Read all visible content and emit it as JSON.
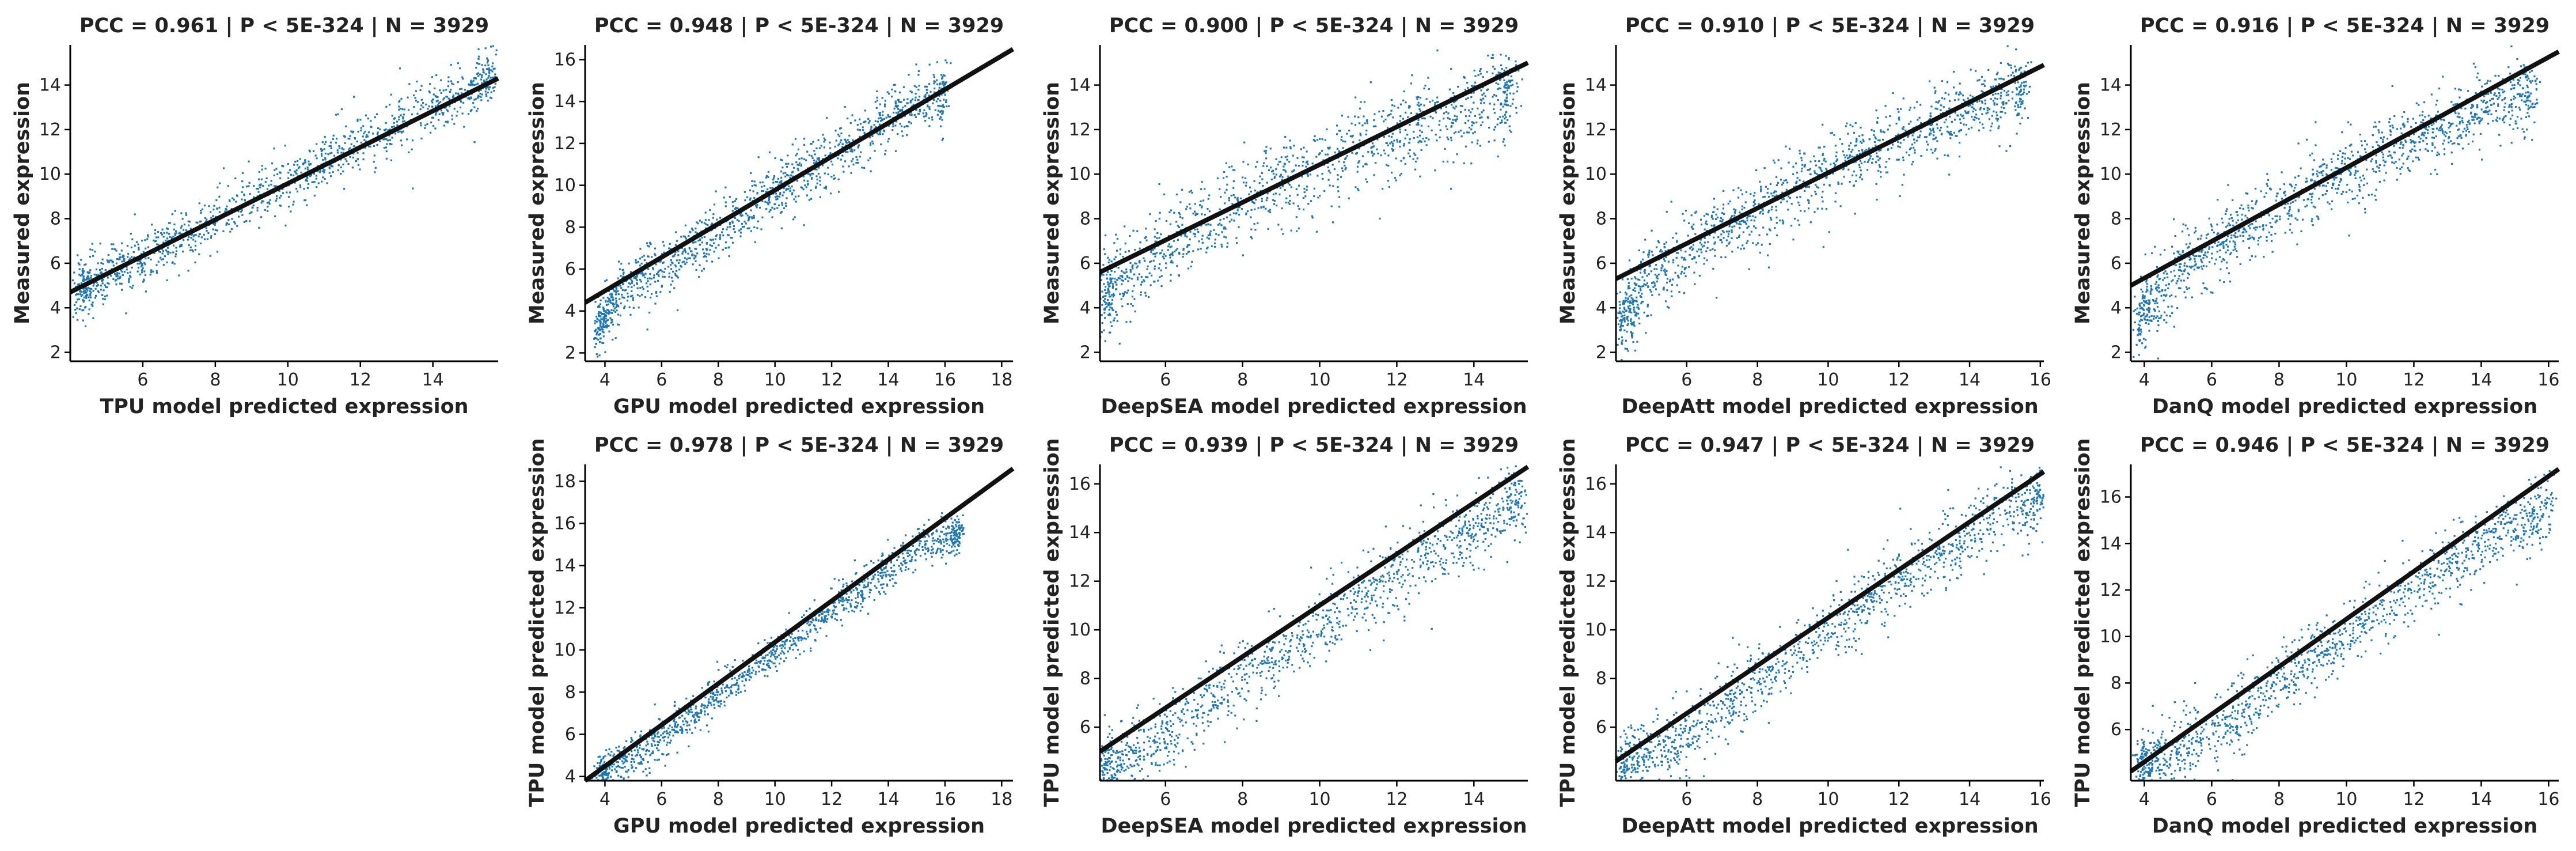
{
  "colors": {
    "points": "#1f77b4",
    "fit_line": "#111111",
    "axis": "#000000",
    "text": "#222222"
  },
  "chart_data": [
    {
      "type": "scatter",
      "title": "PCC =  0.961 | P <  5E-324 | N = 3929",
      "xlabel": "TPU model predicted expression",
      "ylabel": "Measured expression",
      "xlim": [
        4.0,
        15.8
      ],
      "ylim": [
        1.6,
        15.8
      ],
      "xticks": [
        6,
        8,
        10,
        12,
        14
      ],
      "yticks": [
        2,
        4,
        6,
        8,
        10,
        12,
        14
      ],
      "n_points": 3929,
      "pcc": 0.961,
      "fit_line": {
        "x": [
          4.0,
          15.8
        ],
        "y": [
          4.7,
          14.3
        ]
      },
      "cloud": {
        "spine": [
          [
            4.3,
            4.9
          ],
          [
            6,
            6.3
          ],
          [
            8,
            8.0
          ],
          [
            10,
            9.7
          ],
          [
            12,
            11.3
          ],
          [
            14,
            13.0
          ],
          [
            15.6,
            14.3
          ]
        ],
        "spread": 0.75
      },
      "grid": false,
      "legend": "none"
    },
    {
      "type": "scatter",
      "title": "PCC =  0.948 | P <  5E-324 | N = 3929",
      "xlabel": "GPU model predicted expression",
      "ylabel": "Measured expression",
      "xlim": [
        3.3,
        18.4
      ],
      "ylim": [
        1.6,
        16.7
      ],
      "xticks": [
        4,
        6,
        8,
        10,
        12,
        14,
        16,
        18
      ],
      "yticks": [
        2,
        4,
        6,
        8,
        10,
        12,
        14,
        16
      ],
      "n_points": 3929,
      "pcc": 0.948,
      "fit_line": {
        "x": [
          3.3,
          18.4
        ],
        "y": [
          4.4,
          16.5
        ]
      },
      "cloud": {
        "spine": [
          [
            3.8,
            3.2
          ],
          [
            4.5,
            5.0
          ],
          [
            6,
            6.0
          ],
          [
            8,
            7.8
          ],
          [
            10,
            9.7
          ],
          [
            12,
            11.4
          ],
          [
            14,
            13.2
          ],
          [
            16,
            14.5
          ]
        ],
        "spread": 0.8
      },
      "grid": false,
      "legend": "none"
    },
    {
      "type": "scatter",
      "title": "PCC =  0.900 | P <  5E-324 | N = 3929",
      "xlabel": "DeepSEA model predicted expression",
      "ylabel": "Measured expression",
      "xlim": [
        4.3,
        15.4
      ],
      "ylim": [
        1.6,
        15.8
      ],
      "xticks": [
        6,
        8,
        10,
        12,
        14
      ],
      "yticks": [
        2,
        4,
        6,
        8,
        10,
        12,
        14
      ],
      "n_points": 3929,
      "pcc": 0.9,
      "fit_line": {
        "x": [
          4.3,
          15.4
        ],
        "y": [
          5.6,
          15.0
        ]
      },
      "cloud": {
        "spine": [
          [
            4.4,
            4.6
          ],
          [
            5.5,
            6.2
          ],
          [
            7,
            7.8
          ],
          [
            9,
            9.8
          ],
          [
            11,
            11.1
          ],
          [
            13,
            12.4
          ],
          [
            15,
            13.8
          ]
        ],
        "spread": 1.1
      },
      "grid": false,
      "legend": "none"
    },
    {
      "type": "scatter",
      "title": "PCC =  0.910 | P <  5E-324 | N = 3929",
      "xlabel": "DeepAtt model predicted expression",
      "ylabel": "Measured expression",
      "xlim": [
        4.0,
        16.1
      ],
      "ylim": [
        1.6,
        15.8
      ],
      "xticks": [
        6,
        8,
        10,
        12,
        14,
        16
      ],
      "yticks": [
        2,
        4,
        6,
        8,
        10,
        12,
        14
      ],
      "n_points": 3929,
      "pcc": 0.91,
      "fit_line": {
        "x": [
          4.0,
          16.1
        ],
        "y": [
          5.3,
          14.9
        ]
      },
      "cloud": {
        "spine": [
          [
            4.2,
            3.5
          ],
          [
            5,
            5.6
          ],
          [
            7,
            7.5
          ],
          [
            9,
            9.3
          ],
          [
            11,
            10.9
          ],
          [
            13,
            12.2
          ],
          [
            15.5,
            13.9
          ]
        ],
        "spread": 1.0
      },
      "grid": false,
      "legend": "none"
    },
    {
      "type": "scatter",
      "title": "PCC =  0.916 | P <  5E-324 | N = 3929",
      "xlabel": "DanQ model predicted expression",
      "ylabel": "Measured expression",
      "xlim": [
        3.6,
        16.3
      ],
      "ylim": [
        1.6,
        15.8
      ],
      "xticks": [
        4,
        6,
        8,
        10,
        12,
        14,
        16
      ],
      "yticks": [
        2,
        4,
        6,
        8,
        10,
        12,
        14
      ],
      "n_points": 3929,
      "pcc": 0.916,
      "fit_line": {
        "x": [
          3.6,
          16.3
        ],
        "y": [
          5.0,
          15.5
        ]
      },
      "cloud": {
        "spine": [
          [
            3.9,
            3.6
          ],
          [
            5,
            5.8
          ],
          [
            7,
            7.6
          ],
          [
            9,
            9.3
          ],
          [
            11,
            10.9
          ],
          [
            13,
            12.2
          ],
          [
            15.5,
            13.8
          ]
        ],
        "spread": 0.95
      },
      "grid": false,
      "legend": "none"
    },
    {
      "type": "scatter",
      "title": "PCC =  0.978 | P <  5E-324 | N = 3929",
      "xlabel": "GPU model predicted expression",
      "ylabel": "TPU model predicted expression",
      "xlim": [
        3.3,
        18.4
      ],
      "ylim": [
        3.8,
        18.8
      ],
      "xticks": [
        4,
        6,
        8,
        10,
        12,
        14,
        16,
        18
      ],
      "yticks": [
        4,
        6,
        8,
        10,
        12,
        14,
        16,
        18
      ],
      "n_points": 3929,
      "pcc": 0.978,
      "fit_line": {
        "x": [
          3.3,
          18.4
        ],
        "y": [
          3.8,
          18.6
        ]
      },
      "cloud": {
        "spine": [
          [
            3.8,
            4.0
          ],
          [
            5,
            4.9
          ],
          [
            7,
            6.8
          ],
          [
            9,
            8.9
          ],
          [
            11,
            10.9
          ],
          [
            13,
            12.8
          ],
          [
            15,
            14.9
          ],
          [
            16.5,
            15.6
          ]
        ],
        "spread": 0.55
      },
      "grid": false,
      "legend": "none"
    },
    {
      "type": "scatter",
      "title": "PCC =  0.939 | P <  5E-324 | N = 3929",
      "xlabel": "DeepSEA model predicted expression",
      "ylabel": "TPU model predicted expression",
      "xlim": [
        4.3,
        15.4
      ],
      "ylim": [
        3.8,
        16.8
      ],
      "xticks": [
        6,
        8,
        10,
        12,
        14
      ],
      "yticks": [
        6,
        8,
        10,
        12,
        14,
        16
      ],
      "n_points": 3929,
      "pcc": 0.939,
      "fit_line": {
        "x": [
          4.3,
          15.4
        ],
        "y": [
          5.0,
          16.7
        ]
      },
      "cloud": {
        "spine": [
          [
            4.4,
            4.3
          ],
          [
            6,
            5.6
          ],
          [
            8,
            8.0
          ],
          [
            10,
            10.2
          ],
          [
            12,
            12.3
          ],
          [
            14,
            14.2
          ],
          [
            15.2,
            15.4
          ]
        ],
        "spread": 0.9
      },
      "grid": false,
      "legend": "none"
    },
    {
      "type": "scatter",
      "title": "PCC =  0.947 | P <  5E-324 | N = 3929",
      "xlabel": "DeepAtt model predicted expression",
      "ylabel": "TPU model predicted expression",
      "xlim": [
        4.0,
        16.1
      ],
      "ylim": [
        3.8,
        16.8
      ],
      "xticks": [
        6,
        8,
        10,
        12,
        14,
        16
      ],
      "yticks": [
        6,
        8,
        10,
        12,
        14,
        16
      ],
      "n_points": 3929,
      "pcc": 0.947,
      "fit_line": {
        "x": [
          4.0,
          16.1
        ],
        "y": [
          4.6,
          16.5
        ]
      },
      "cloud": {
        "spine": [
          [
            4.2,
            4.3
          ],
          [
            6,
            5.6
          ],
          [
            8,
            7.9
          ],
          [
            10,
            10.1
          ],
          [
            12,
            12.1
          ],
          [
            14,
            14.0
          ],
          [
            16,
            15.5
          ]
        ],
        "spread": 0.85
      },
      "grid": false,
      "legend": "none"
    },
    {
      "type": "scatter",
      "title": "PCC =  0.946 | P <  5E-324 | N = 3929",
      "xlabel": "DanQ model predicted expression",
      "ylabel": "TPU model predicted expression",
      "xlim": [
        3.6,
        16.3
      ],
      "ylim": [
        3.8,
        17.4
      ],
      "xticks": [
        4,
        6,
        8,
        10,
        12,
        14,
        16
      ],
      "yticks": [
        6,
        8,
        10,
        12,
        14,
        16
      ],
      "n_points": 3929,
      "pcc": 0.946,
      "fit_line": {
        "x": [
          3.6,
          16.3
        ],
        "y": [
          4.2,
          17.2
        ]
      },
      "cloud": {
        "spine": [
          [
            3.9,
            4.3
          ],
          [
            6,
            5.8
          ],
          [
            8,
            8.0
          ],
          [
            10,
            10.1
          ],
          [
            12,
            12.1
          ],
          [
            14,
            14.0
          ],
          [
            16,
            15.4
          ]
        ],
        "spread": 0.85
      },
      "grid": false,
      "legend": "none"
    }
  ]
}
